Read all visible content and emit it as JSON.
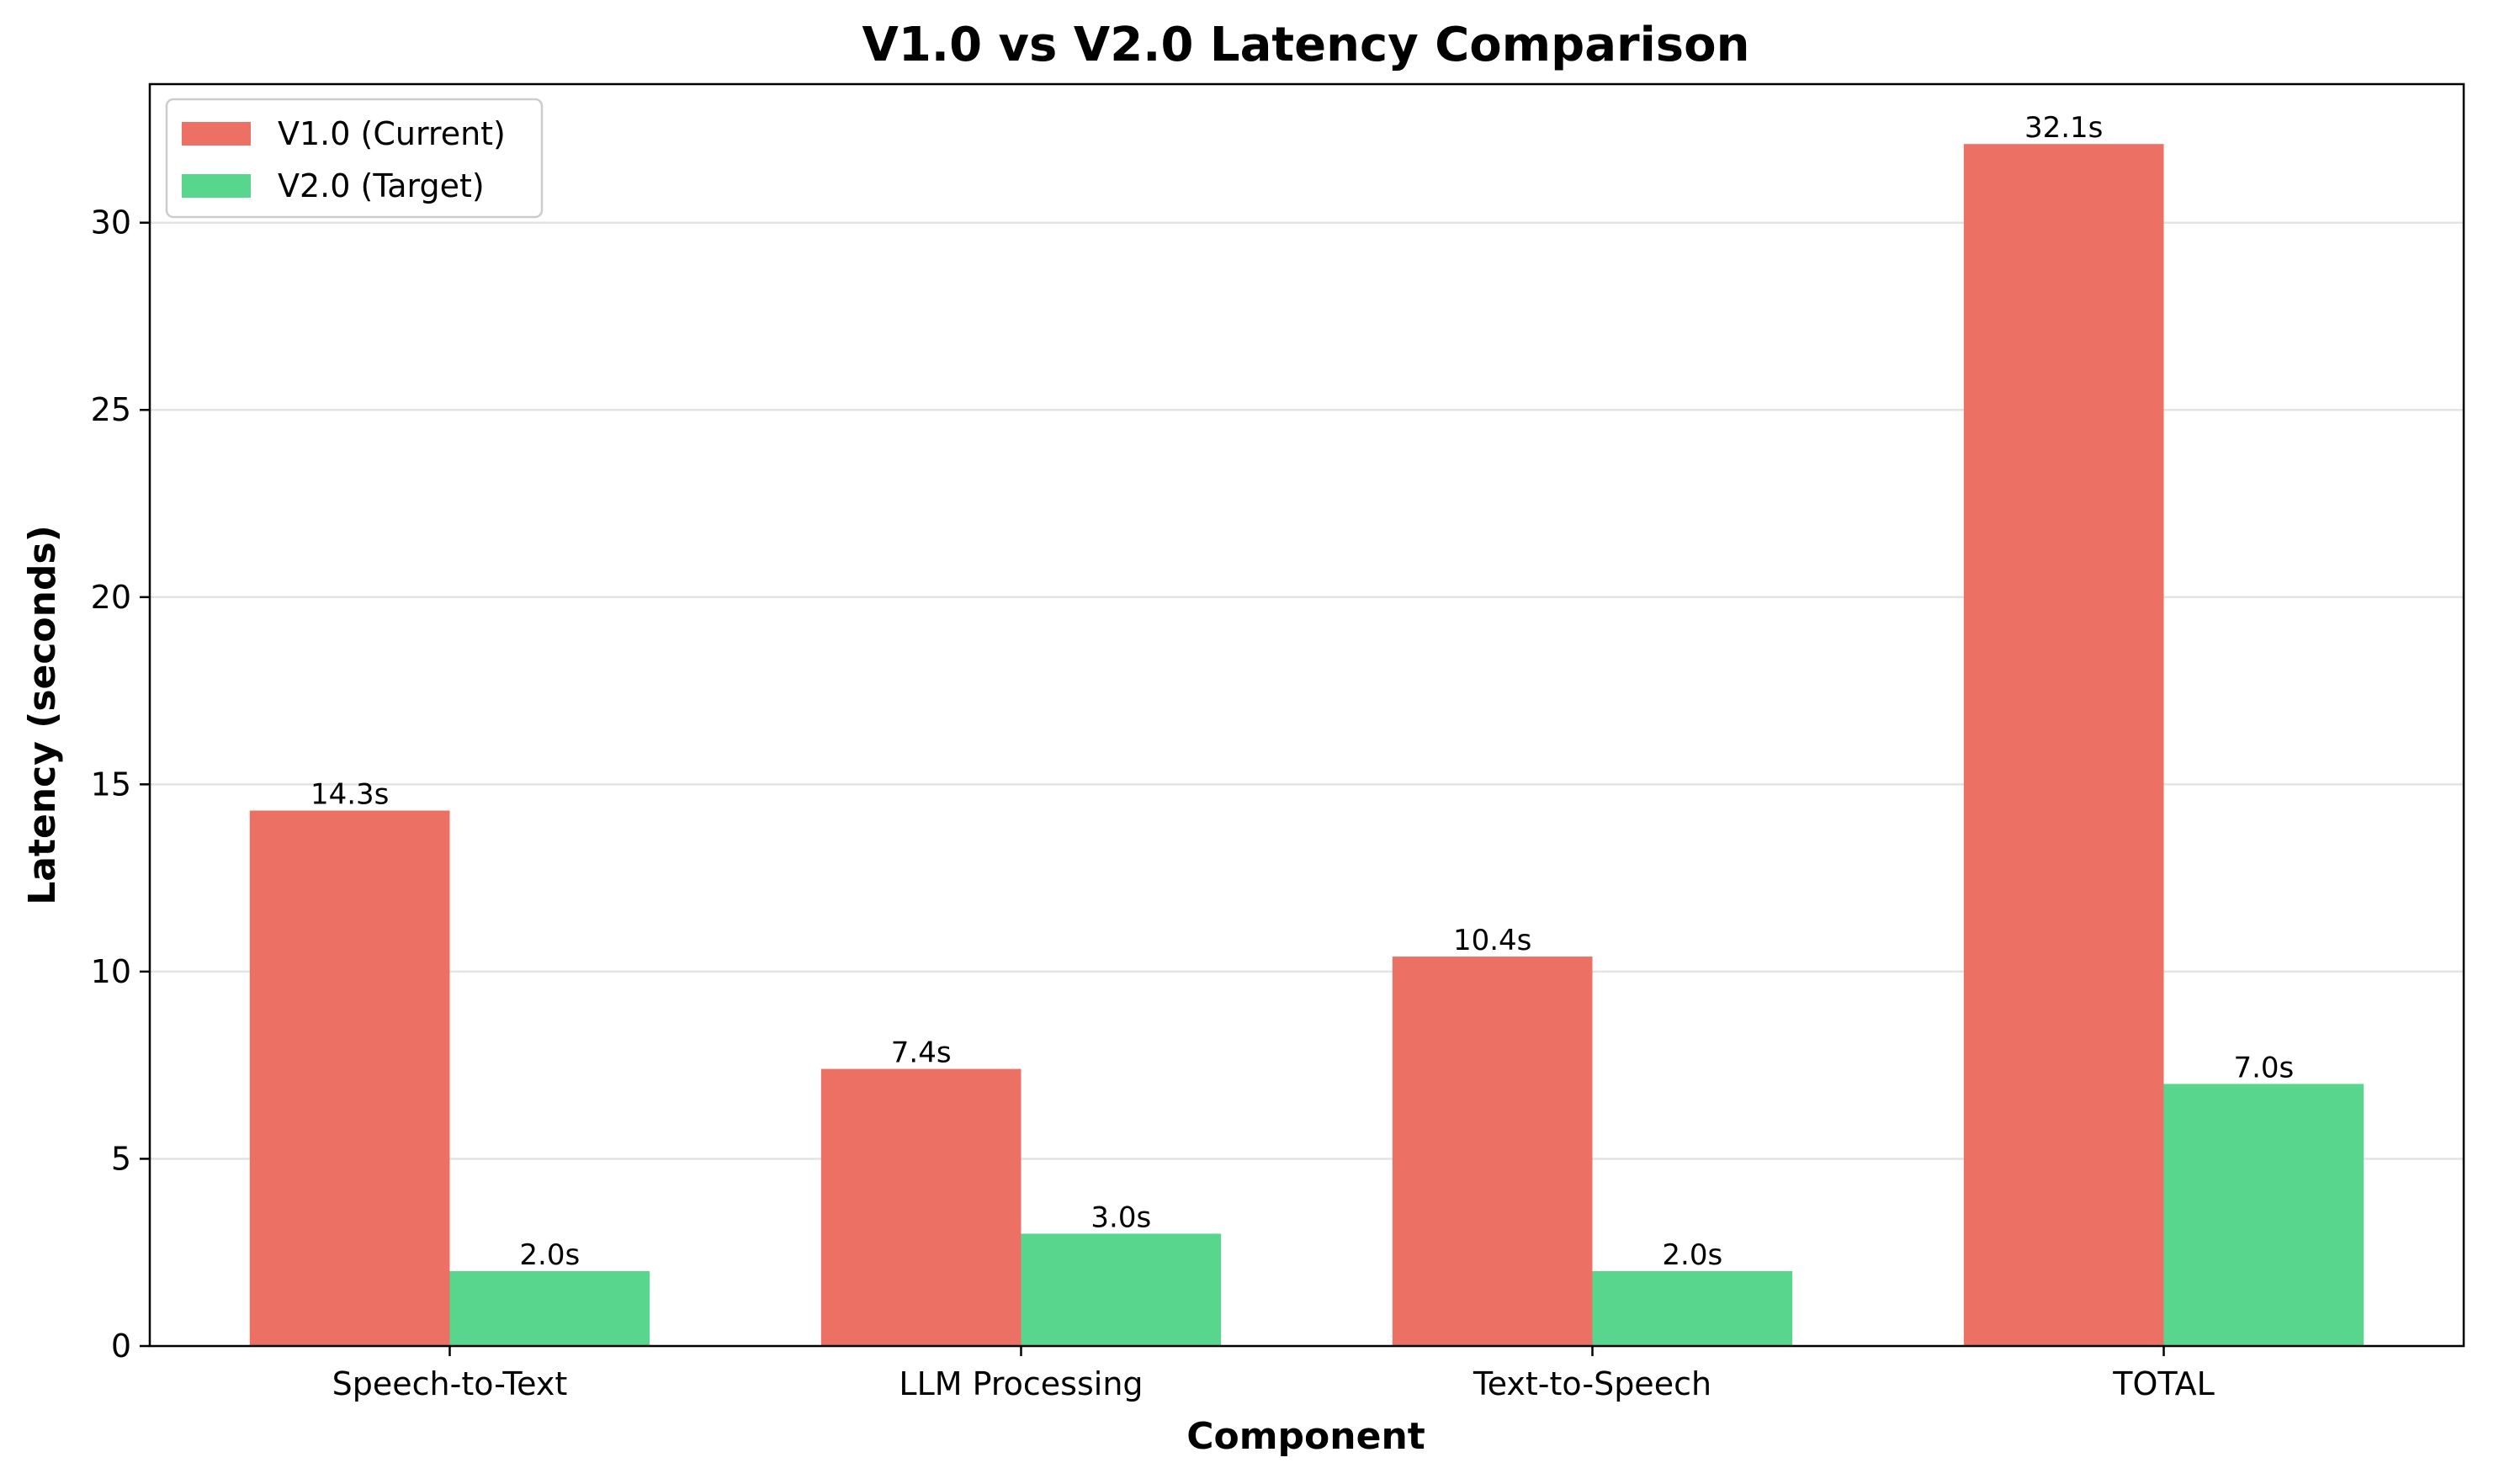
{
  "chart_data": {
    "type": "bar",
    "title": "V1.0 vs V2.0 Latency Comparison",
    "xlabel": "Component",
    "ylabel": "Latency (seconds)",
    "categories": [
      "Speech-to-Text",
      "LLM Processing",
      "Text-to-Speech",
      "TOTAL"
    ],
    "series": [
      {
        "name": "V1.0 (Current)",
        "color": "#ec7063",
        "values": [
          14.3,
          7.4,
          10.4,
          32.1
        ],
        "labels": [
          "14.3s",
          "7.4s",
          "10.4s",
          "32.1s"
        ]
      },
      {
        "name": "V2.0 (Target)",
        "color": "#58d68d",
        "values": [
          2.0,
          3.0,
          2.0,
          7.0
        ],
        "labels": [
          "2.0s",
          "3.0s",
          "2.0s",
          "7.0s"
        ]
      }
    ],
    "ylim": [
      0,
      33.7
    ],
    "yticks": [
      0,
      5,
      10,
      15,
      20,
      25,
      30
    ],
    "grid": "y-major",
    "legend_position": "top-left"
  }
}
